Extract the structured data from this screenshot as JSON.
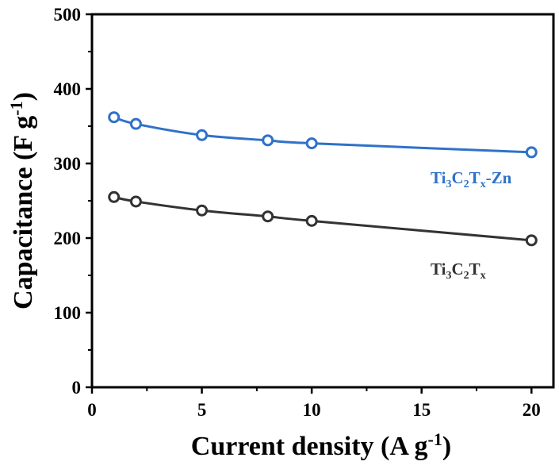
{
  "chart_data": {
    "type": "line",
    "xlabel": {
      "main": "Current density (A g",
      "sup": "-1",
      "close": ")"
    },
    "ylabel": {
      "main": "Capacitance (F g",
      "sup": "-1",
      "close": ")"
    },
    "xlim": [
      0,
      21
    ],
    "ylim": [
      0,
      500
    ],
    "xticks": [
      "0",
      "5",
      "10",
      "15",
      "20"
    ],
    "yticks": [
      "0",
      "100",
      "200",
      "300",
      "400",
      "500"
    ],
    "grid": false,
    "legend": "inline labels near curves",
    "series": [
      {
        "name": "Ti3C2Tx-Zn",
        "label_parts": {
          "a": "Ti",
          "s1": "3",
          "b": "C",
          "s2": "2",
          "c": "T",
          "s3": "x",
          "d": "-Zn"
        },
        "color": "#2f72c9",
        "x": [
          1,
          2,
          5,
          8,
          10,
          20
        ],
        "y": [
          362,
          353,
          338,
          331,
          327,
          315
        ]
      },
      {
        "name": "Ti3C2Tx",
        "label_parts": {
          "a": "Ti",
          "s1": "3",
          "b": "C",
          "s2": "2",
          "c": "T",
          "s3": "x",
          "d": ""
        },
        "color": "#333333",
        "x": [
          1,
          2,
          5,
          8,
          10,
          20
        ],
        "y": [
          255,
          249,
          237,
          229,
          223,
          197
        ]
      }
    ]
  }
}
